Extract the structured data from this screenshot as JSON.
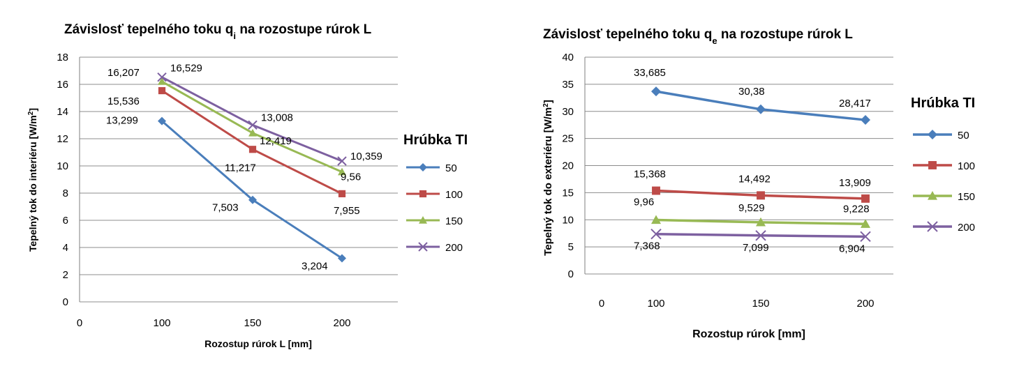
{
  "chart_data": [
    {
      "type": "line",
      "title_main": "Závislosť tepelného toku q",
      "title_sub": "i",
      "title_rest": " na rozostupe rúrok L",
      "xlabel": "Rozostup rúrok L [mm]",
      "ylabel_main": "Tepelný tok do interiéru [W/m",
      "ylabel_sup": "2",
      "ylabel_end": "]",
      "x_ticks": [
        "0",
        "100",
        "150",
        "200"
      ],
      "y_ticks": [
        "0",
        "2",
        "4",
        "6",
        "8",
        "10",
        "12",
        "14",
        "16",
        "18"
      ],
      "ylim": [
        0,
        18
      ],
      "x": [
        100,
        150,
        200
      ],
      "grid": true,
      "legend_title": "Hrúbka TI",
      "legend_position": "right",
      "series": [
        {
          "name": "50",
          "color": "#4a7ebb",
          "marker": "diamond",
          "values": [
            13.299,
            7.503,
            3.204
          ],
          "labels": [
            "13,299",
            "7,503",
            "3,204"
          ]
        },
        {
          "name": "100",
          "color": "#be4b48",
          "marker": "square",
          "values": [
            15.536,
            11.217,
            7.955
          ],
          "labels": [
            "15,536",
            "11,217",
            "7,955"
          ]
        },
        {
          "name": "150",
          "color": "#98b954",
          "marker": "triangle",
          "values": [
            16.207,
            12.419,
            9.56
          ],
          "labels": [
            "16,207",
            "12,419",
            "9,56"
          ]
        },
        {
          "name": "200",
          "color": "#7d60a0",
          "marker": "x",
          "values": [
            16.529,
            13.008,
            10.359
          ],
          "labels": [
            "16,529",
            "13,008",
            "10,359"
          ]
        }
      ]
    },
    {
      "type": "line",
      "title_main": "Závislosť tepelného toku  q",
      "title_sub": "e",
      "title_rest": " na rozostupe rúrok L",
      "xlabel": "Rozostup rúrok [mm]",
      "ylabel_main": "Tepelný tok do exteriéru [W/m",
      "ylabel_sup": "2",
      "ylabel_end": "]",
      "x_ticks": [
        "0",
        "100",
        "150",
        "200"
      ],
      "y_ticks": [
        "0",
        "5",
        "10",
        "15",
        "20",
        "25",
        "30",
        "35",
        "40"
      ],
      "ylim": [
        0,
        40
      ],
      "x": [
        100,
        150,
        200
      ],
      "grid": true,
      "legend_title": "Hrúbka TI",
      "legend_position": "right",
      "series": [
        {
          "name": "50",
          "color": "#4a7ebb",
          "marker": "diamond",
          "values": [
            33.685,
            30.38,
            28.417
          ],
          "labels": [
            "33,685",
            "30,38",
            "28,417"
          ]
        },
        {
          "name": "100",
          "color": "#be4b48",
          "marker": "square",
          "values": [
            15.368,
            14.492,
            13.909
          ],
          "labels": [
            "15,368",
            "14,492",
            "13,909"
          ]
        },
        {
          "name": "150",
          "color": "#98b954",
          "marker": "triangle",
          "values": [
            9.96,
            9.529,
            9.228
          ],
          "labels": [
            "9,96",
            "9,529",
            "9,228"
          ]
        },
        {
          "name": "200",
          "color": "#7d60a0",
          "marker": "x",
          "values": [
            7.368,
            7.099,
            6.904
          ],
          "labels": [
            "7,368",
            "7,099",
            "6,904"
          ]
        }
      ]
    }
  ]
}
